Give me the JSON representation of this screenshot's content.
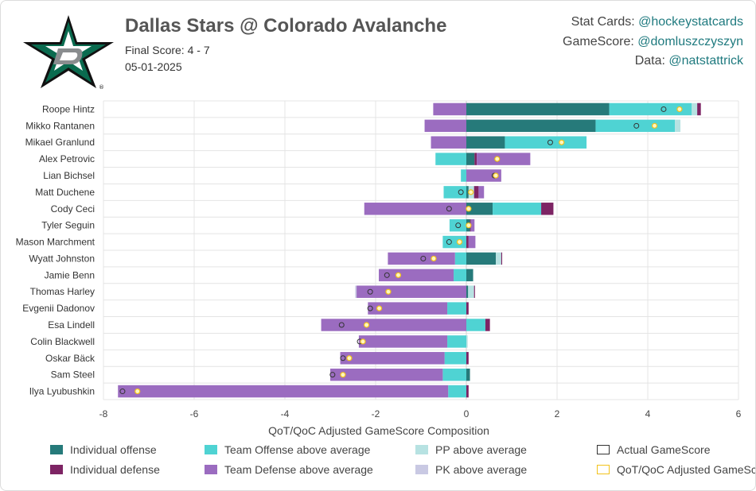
{
  "header": {
    "title": "Dallas Stars @ Colorado Avalanche",
    "final_score": "Final Score: 4 - 7",
    "date": "05-01-2025",
    "logo_icon": "dallas-stars-logo-icon"
  },
  "credits": [
    {
      "label": "Stat Cards: ",
      "handle": "@hockeystatcards"
    },
    {
      "label": "GameScore: ",
      "handle": "@domluszczyszyn"
    },
    {
      "label": "Data: ",
      "handle": "@natstattrick"
    }
  ],
  "colors": {
    "individual_offense": "#267a7a",
    "team_offense": "#4fd3d3",
    "pp": "#b7e2e2",
    "individual_defense": "#7d2464",
    "team_defense": "#9b6cc0",
    "pk": "#c9c9e3",
    "actual_marker": "#333333",
    "adjusted_marker": "#f2c21b"
  },
  "chart_data": {
    "type": "bar",
    "orientation": "horizontal-stacked",
    "xlabel": "QoT/QoC Adjusted GameScore Composition",
    "xlim": [
      -8,
      6
    ],
    "xticks": [
      "-8",
      "-6",
      "-4",
      "-2",
      "0",
      "2",
      "4",
      "6"
    ],
    "grid": true,
    "categories": [
      "Roope Hintz",
      "Mikko Rantanen",
      "Mikael Granlund",
      "Alex Petrovic",
      "Lian Bichsel",
      "Matt Duchene",
      "Cody Ceci",
      "Tyler Seguin",
      "Mason Marchment",
      "Wyatt Johnston",
      "Jamie Benn",
      "Thomas Harley",
      "Evgenii Dadonov",
      "Esa Lindell",
      "Colin Blackwell",
      "Oskar Bäck",
      "Sam Steel",
      "Ilya Lyubushkin"
    ],
    "series": [
      {
        "name": "Individual offense",
        "values": [
          3.15,
          2.85,
          0.85,
          0.18,
          0,
          0.05,
          0.58,
          0.08,
          0,
          0.65,
          0.15,
          0.04,
          0,
          0,
          0,
          0,
          0.08,
          0
        ]
      },
      {
        "name": "Team Offense above average",
        "values": [
          1.82,
          1.75,
          1.8,
          -0.68,
          -0.12,
          -0.5,
          1.07,
          -0.37,
          -0.52,
          -0.25,
          -0.28,
          0,
          -0.42,
          0.42,
          -0.42,
          -0.48,
          -0.52,
          -0.4
        ]
      },
      {
        "name": "PP above average",
        "values": [
          0.12,
          0.12,
          0,
          0,
          0,
          0.12,
          0,
          0,
          0,
          0.12,
          0,
          0.13,
          0,
          0,
          0.03,
          0,
          0,
          0
        ]
      },
      {
        "name": "Individual defense",
        "values": [
          0.08,
          0,
          0,
          0.05,
          0,
          0.1,
          0.27,
          0.02,
          0.05,
          0.02,
          0,
          0.02,
          0.05,
          0.1,
          0,
          0.05,
          0,
          0.05
        ]
      },
      {
        "name": "Team Defense above average",
        "values": [
          -0.73,
          -0.92,
          -0.78,
          1.18,
          0.77,
          0.12,
          -2.25,
          0.08,
          0.15,
          -1.48,
          -1.65,
          -2.42,
          -1.75,
          -3.2,
          -1.95,
          -2.3,
          -2.48,
          -7.28
        ]
      },
      {
        "name": "PK above average",
        "values": [
          0,
          0,
          0,
          0,
          0,
          0,
          0,
          0,
          0,
          0,
          0,
          -0.03,
          0,
          0,
          0,
          0,
          0,
          0
        ]
      }
    ],
    "actual_gamescore": [
      4.35,
      3.75,
      1.85,
      0.68,
      0.62,
      -0.12,
      -0.38,
      -0.18,
      -0.38,
      -0.95,
      -1.75,
      -2.12,
      -2.12,
      -2.75,
      -2.35,
      -2.72,
      -2.95,
      -7.58
    ],
    "adjusted_gamescore": [
      4.7,
      4.15,
      2.1,
      0.68,
      0.65,
      0.1,
      0.05,
      0.05,
      -0.15,
      -0.72,
      -1.5,
      -1.72,
      -1.92,
      -2.2,
      -2.28,
      -2.58,
      -2.72,
      -7.25
    ],
    "legend": {
      "placement": "bottom",
      "items": [
        {
          "label": "Individual offense",
          "color": "#267a7a",
          "style": "fill"
        },
        {
          "label": "Team Offense above average",
          "color": "#4fd3d3",
          "style": "fill"
        },
        {
          "label": "PP above average",
          "color": "#b7e2e2",
          "style": "fill"
        },
        {
          "label": "Actual GameScore",
          "color": "#333333",
          "style": "outline"
        },
        {
          "label": "Individual defense",
          "color": "#7d2464",
          "style": "fill"
        },
        {
          "label": "Team Defense above average",
          "color": "#9b6cc0",
          "style": "fill"
        },
        {
          "label": "PK above average",
          "color": "#c9c9e3",
          "style": "fill"
        },
        {
          "label": "QoT/QoC Adjusted GameScore",
          "color": "#f2c21b",
          "style": "outline"
        }
      ]
    }
  }
}
